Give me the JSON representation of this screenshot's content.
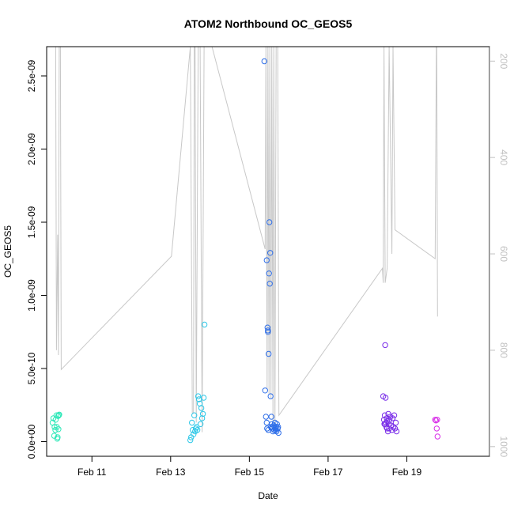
{
  "chart_data": {
    "type": "scatter",
    "title": "ATOM2 Northbound OC_GEOS5",
    "xlabel": "Date",
    "ylabel": "OC_GEOS5",
    "xlim": [
      9.85,
      21.1
    ],
    "ylim": [
      -1e-10,
      2.7e-09
    ],
    "x_ticks": [
      {
        "value": 11,
        "label": "Feb 11"
      },
      {
        "value": 13,
        "label": "Feb 13"
      },
      {
        "value": 15,
        "label": "Feb 15"
      },
      {
        "value": 17,
        "label": "Feb 17"
      },
      {
        "value": 19,
        "label": "Feb 19"
      }
    ],
    "y_ticks": [
      {
        "value": 0,
        "label": "0.0e+00"
      },
      {
        "value": 5e-10,
        "label": "5.0e-10"
      },
      {
        "value": 1e-09,
        "label": "1.0e-09"
      },
      {
        "value": 1.5e-09,
        "label": "1.5e-09"
      },
      {
        "value": 2e-09,
        "label": "2.0e-09"
      },
      {
        "value": 2.5e-09,
        "label": "2.5e-09"
      }
    ],
    "y2_range": [
      1020,
      170
    ],
    "y2_ticks": [
      {
        "value": 200,
        "label": "200"
      },
      {
        "value": 400,
        "label": "400"
      },
      {
        "value": 600,
        "label": "600"
      },
      {
        "value": 800,
        "label": "800"
      },
      {
        "value": 1000,
        "label": "1000"
      }
    ],
    "pressure_line": {
      "color": "#c8c8c8",
      "points": [
        [
          10.08,
          170
        ],
        [
          10.1,
          800
        ],
        [
          10.13,
          560
        ],
        [
          10.15,
          810
        ],
        [
          10.17,
          170
        ],
        [
          10.2,
          170
        ],
        [
          10.22,
          840
        ],
        [
          13.02,
          605
        ],
        [
          13.5,
          170
        ],
        [
          13.55,
          930
        ],
        [
          13.58,
          930
        ],
        [
          13.6,
          170
        ],
        [
          13.62,
          170
        ],
        [
          13.65,
          950
        ],
        [
          13.7,
          170
        ],
        [
          13.75,
          170
        ],
        [
          13.8,
          970
        ],
        [
          13.85,
          170
        ],
        [
          14.05,
          170
        ],
        [
          15.4,
          590
        ],
        [
          15.42,
          170
        ],
        [
          15.45,
          880
        ],
        [
          15.47,
          170
        ],
        [
          15.5,
          890
        ],
        [
          15.52,
          170
        ],
        [
          15.55,
          900
        ],
        [
          15.57,
          170
        ],
        [
          15.6,
          950
        ],
        [
          15.62,
          170
        ],
        [
          15.65,
          960
        ],
        [
          15.68,
          170
        ],
        [
          15.72,
          170
        ],
        [
          15.75,
          935
        ],
        [
          18.38,
          630
        ],
        [
          18.4,
          660
        ],
        [
          18.42,
          170
        ],
        [
          18.45,
          660
        ],
        [
          18.5,
          630
        ],
        [
          18.55,
          170
        ],
        [
          18.62,
          600
        ],
        [
          18.65,
          170
        ],
        [
          18.7,
          550
        ],
        [
          19.72,
          610
        ],
        [
          19.75,
          170
        ],
        [
          19.76,
          170
        ],
        [
          19.78,
          730
        ]
      ]
    },
    "series": [
      {
        "color": "#2ee8b8",
        "points": [
          [
            10.0,
            1.3e-10
          ],
          [
            10.02,
            1.6e-10
          ],
          [
            10.04,
            4e-11
          ],
          [
            10.05,
            1e-10
          ],
          [
            10.07,
            8e-11
          ],
          [
            10.08,
            1.5e-10
          ],
          [
            10.1,
            1.8e-10
          ],
          [
            10.11,
            1e-10
          ],
          [
            10.12,
            2e-11
          ],
          [
            10.13,
            3e-11
          ],
          [
            10.14,
            1.75e-10
          ],
          [
            10.15,
            8.5e-11
          ],
          [
            10.16,
            1.8e-10
          ],
          [
            10.17,
            1.85e-10
          ]
        ]
      },
      {
        "color": "#2ec8e8",
        "points": [
          [
            13.5,
            1e-11
          ],
          [
            13.52,
            3e-11
          ],
          [
            13.54,
            1.3e-10
          ],
          [
            13.56,
            8e-11
          ],
          [
            13.58,
            5e-11
          ],
          [
            13.6,
            1.8e-10
          ],
          [
            13.62,
            7e-11
          ],
          [
            13.64,
            9e-11
          ],
          [
            13.66,
            1e-10
          ],
          [
            13.68,
            8e-11
          ],
          [
            13.7,
            3.1e-10
          ],
          [
            13.72,
            2.9e-10
          ],
          [
            13.74,
            2.6e-10
          ],
          [
            13.76,
            1.2e-10
          ],
          [
            13.78,
            2.3e-10
          ],
          [
            13.8,
            1.6e-10
          ],
          [
            13.82,
            1.9e-10
          ],
          [
            13.84,
            3e-10
          ],
          [
            13.86,
            8e-10
          ]
        ]
      },
      {
        "color": "#2e6ee8",
        "points": [
          [
            15.38,
            2.6e-09
          ],
          [
            15.4,
            3.5e-10
          ],
          [
            15.42,
            1.7e-10
          ],
          [
            15.44,
            1.3e-10
          ],
          [
            15.45,
            9e-11
          ],
          [
            15.46,
            7.8e-10
          ],
          [
            15.47,
            7.6e-10
          ],
          [
            15.48,
            8e-11
          ],
          [
            15.49,
            6e-10
          ],
          [
            15.5,
            1.15e-09
          ],
          [
            15.51,
            1.5e-09
          ],
          [
            15.52,
            1.08e-09
          ],
          [
            15.53,
            1.29e-09
          ],
          [
            15.54,
            3.1e-10
          ],
          [
            15.55,
            1e-10
          ],
          [
            15.56,
            1.7e-10
          ],
          [
            15.57,
            1.2e-10
          ],
          [
            15.58,
            9e-11
          ],
          [
            15.59,
            1e-10
          ],
          [
            15.6,
            7e-11
          ],
          [
            15.62,
            1.1e-10
          ],
          [
            15.63,
            8e-11
          ],
          [
            15.64,
            1e-10
          ],
          [
            15.65,
            1.3e-10
          ],
          [
            15.66,
            9e-11
          ],
          [
            15.67,
            8e-11
          ],
          [
            15.68,
            1e-10
          ],
          [
            15.69,
            7e-11
          ],
          [
            15.7,
            1.2e-10
          ],
          [
            15.72,
            9e-11
          ],
          [
            15.73,
            1e-10
          ],
          [
            15.74,
            6e-11
          ],
          [
            15.44,
            1.24e-09
          ],
          [
            15.47,
            7.5e-10
          ]
        ]
      },
      {
        "color": "#7a2ee8",
        "points": [
          [
            18.4,
            3.1e-10
          ],
          [
            18.42,
            1.5e-10
          ],
          [
            18.43,
            1.2e-10
          ],
          [
            18.44,
            1.8e-10
          ],
          [
            18.45,
            6.6e-10
          ],
          [
            18.46,
            3e-10
          ],
          [
            18.47,
            1.3e-10
          ],
          [
            18.48,
            1e-10
          ],
          [
            18.49,
            1.6e-10
          ],
          [
            18.5,
            1.4e-10
          ],
          [
            18.52,
            7e-11
          ],
          [
            18.53,
            1.9e-10
          ],
          [
            18.54,
            1.2e-10
          ],
          [
            18.55,
            9e-11
          ],
          [
            18.56,
            1.5e-10
          ],
          [
            18.58,
            1.7e-10
          ],
          [
            18.6,
            1.1e-10
          ],
          [
            18.62,
            8e-11
          ],
          [
            18.64,
            1.6e-10
          ],
          [
            18.66,
            1e-10
          ],
          [
            18.68,
            1.8e-10
          ],
          [
            18.7,
            9e-11
          ],
          [
            18.72,
            1.3e-10
          ],
          [
            18.74,
            7e-11
          ],
          [
            18.45,
            1.2e-10
          ],
          [
            18.5,
            9e-11
          ]
        ]
      },
      {
        "color": "#d82ee8",
        "points": [
          [
            19.72,
            1.5e-10
          ],
          [
            19.74,
            1.45e-10
          ],
          [
            19.76,
            9e-11
          ],
          [
            19.77,
            1.5e-10
          ],
          [
            19.78,
            3.5e-11
          ]
        ]
      }
    ]
  }
}
